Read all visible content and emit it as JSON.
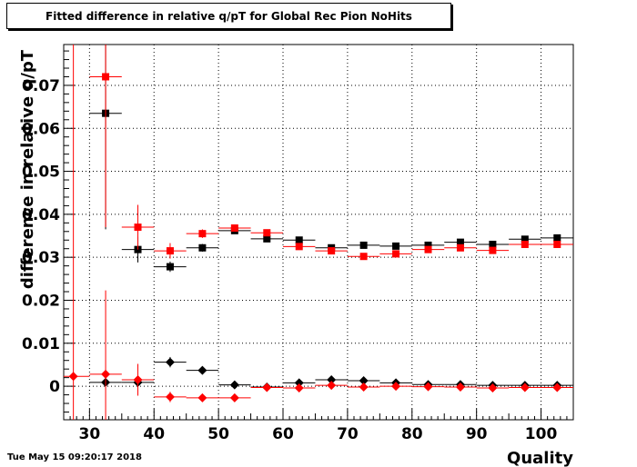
{
  "title": "Fitted difference in relative q/pT for Global Rec Pion NoHits",
  "timestamp": "Tue May 15 09:20:17 2018",
  "chart_data": {
    "type": "scatter",
    "title": "Fitted difference in relative q/pT for Global Rec Pion NoHits",
    "xlabel": "Quality",
    "ylabel": "difference in relative q/pT",
    "xlim": [
      26,
      105
    ],
    "ylim": [
      -0.0078,
      0.0795
    ],
    "grid": true,
    "x_ticks": [
      30,
      40,
      50,
      60,
      70,
      80,
      90,
      100
    ],
    "y_ticks": [
      0,
      0.01,
      0.02,
      0.03,
      0.04,
      0.05,
      0.06,
      0.07
    ],
    "y_tick_labels": [
      "0",
      "0.01",
      "0.02",
      "0.03",
      "0.04",
      "0.05",
      "0.06",
      "0.07"
    ],
    "x_tick_labels": [
      "30",
      "40",
      "50",
      "60",
      "70",
      "80",
      "90",
      "100"
    ],
    "series": [
      {
        "marker": "square",
        "color": "#000000",
        "points": [
          {
            "x": 32.5,
            "y": 0.0635,
            "xerr": 2.5,
            "yerr": 0.027
          },
          {
            "x": 37.5,
            "y": 0.0318,
            "xerr": 2.5,
            "yerr": 0.003
          },
          {
            "x": 42.5,
            "y": 0.0278,
            "xerr": 2.5,
            "yerr": 0.0012
          },
          {
            "x": 47.5,
            "y": 0.0322,
            "xerr": 2.5,
            "yerr": 0.0009
          },
          {
            "x": 52.5,
            "y": 0.0362,
            "xerr": 2.5,
            "yerr": 0.0006
          },
          {
            "x": 57.5,
            "y": 0.0343,
            "xerr": 2.5,
            "yerr": 0.0004
          },
          {
            "x": 62.5,
            "y": 0.034,
            "xerr": 2.5,
            "yerr": 0.0003
          },
          {
            "x": 67.5,
            "y": 0.0322,
            "xerr": 2.5,
            "yerr": 0.0003
          },
          {
            "x": 72.5,
            "y": 0.0328,
            "xerr": 2.5,
            "yerr": 0.0002
          },
          {
            "x": 77.5,
            "y": 0.0326,
            "xerr": 2.5,
            "yerr": 0.0002
          },
          {
            "x": 82.5,
            "y": 0.0328,
            "xerr": 2.5,
            "yerr": 0.0002
          },
          {
            "x": 87.5,
            "y": 0.0335,
            "xerr": 2.5,
            "yerr": 0.0002
          },
          {
            "x": 92.5,
            "y": 0.033,
            "xerr": 2.5,
            "yerr": 0.0002
          },
          {
            "x": 97.5,
            "y": 0.0342,
            "xerr": 2.5,
            "yerr": 0.0002
          },
          {
            "x": 102.5,
            "y": 0.0345,
            "xerr": 2.5,
            "yerr": 0.0002
          }
        ]
      },
      {
        "marker": "square",
        "color": "#ff0000",
        "points": [
          {
            "x": 32.5,
            "y": 0.072,
            "xerr": 2.5,
            "yerr": 0.035
          },
          {
            "x": 37.5,
            "y": 0.037,
            "xerr": 2.5,
            "yerr": 0.0052
          },
          {
            "x": 42.5,
            "y": 0.0315,
            "xerr": 2.5,
            "yerr": 0.0018
          },
          {
            "x": 47.5,
            "y": 0.0355,
            "xerr": 2.5,
            "yerr": 0.001
          },
          {
            "x": 52.5,
            "y": 0.0368,
            "xerr": 2.5,
            "yerr": 0.0006
          },
          {
            "x": 57.5,
            "y": 0.0357,
            "xerr": 2.5,
            "yerr": 0.0004
          },
          {
            "x": 62.5,
            "y": 0.0325,
            "xerr": 2.5,
            "yerr": 0.0003
          },
          {
            "x": 67.5,
            "y": 0.0315,
            "xerr": 2.5,
            "yerr": 0.0003
          },
          {
            "x": 72.5,
            "y": 0.0302,
            "xerr": 2.5,
            "yerr": 0.0002
          },
          {
            "x": 77.5,
            "y": 0.0308,
            "xerr": 2.5,
            "yerr": 0.0002
          },
          {
            "x": 82.5,
            "y": 0.0318,
            "xerr": 2.5,
            "yerr": 0.0002
          },
          {
            "x": 87.5,
            "y": 0.0322,
            "xerr": 2.5,
            "yerr": 0.0002
          },
          {
            "x": 92.5,
            "y": 0.0316,
            "xerr": 2.5,
            "yerr": 0.0002
          },
          {
            "x": 97.5,
            "y": 0.033,
            "xerr": 2.5,
            "yerr": 0.0002
          },
          {
            "x": 102.5,
            "y": 0.033,
            "xerr": 2.5,
            "yerr": 0.0002
          }
        ]
      },
      {
        "marker": "diamond",
        "color": "#000000",
        "points": [
          {
            "x": 32.5,
            "y": 0.0009,
            "xerr": 2.5,
            "yerr": 0.0
          },
          {
            "x": 37.5,
            "y": 0.0009,
            "xerr": 2.5,
            "yerr": 0.0
          },
          {
            "x": 42.5,
            "y": 0.0056,
            "xerr": 2.5,
            "yerr": 0.0012
          },
          {
            "x": 47.5,
            "y": 0.0037,
            "xerr": 2.5,
            "yerr": 0.0008
          },
          {
            "x": 52.5,
            "y": 0.0003,
            "xerr": 2.5,
            "yerr": 0.0005
          },
          {
            "x": 57.5,
            "y": -0.0002,
            "xerr": 2.5,
            "yerr": 0.0003
          },
          {
            "x": 62.5,
            "y": 0.0008,
            "xerr": 2.5,
            "yerr": 0.0003
          },
          {
            "x": 67.5,
            "y": 0.0015,
            "xerr": 2.5,
            "yerr": 0.0002
          },
          {
            "x": 72.5,
            "y": 0.0013,
            "xerr": 2.5,
            "yerr": 0.0002
          },
          {
            "x": 77.5,
            "y": 0.0008,
            "xerr": 2.5,
            "yerr": 0.0002
          },
          {
            "x": 82.5,
            "y": 0.0004,
            "xerr": 2.5,
            "yerr": 0.0002
          },
          {
            "x": 87.5,
            "y": 0.0004,
            "xerr": 2.5,
            "yerr": 0.0002
          },
          {
            "x": 92.5,
            "y": 0.0002,
            "xerr": 2.5,
            "yerr": 0.0002
          },
          {
            "x": 97.5,
            "y": 0.0002,
            "xerr": 2.5,
            "yerr": 0.0002
          },
          {
            "x": 102.5,
            "y": 0.0002,
            "xerr": 2.5,
            "yerr": 0.0002
          }
        ]
      },
      {
        "marker": "diamond",
        "color": "#ff0000",
        "points": [
          {
            "x": 27.5,
            "y": 0.0023,
            "xerr": 2.5,
            "yerr": 0.08
          },
          {
            "x": 32.5,
            "y": 0.0028,
            "xerr": 2.5,
            "yerr": 0.0195
          },
          {
            "x": 37.5,
            "y": 0.0015,
            "xerr": 2.5,
            "yerr": 0.0037
          },
          {
            "x": 42.5,
            "y": -0.0025,
            "xerr": 2.5,
            "yerr": 0.0012
          },
          {
            "x": 47.5,
            "y": -0.0027,
            "xerr": 2.5,
            "yerr": 0.0006
          },
          {
            "x": 52.5,
            "y": -0.0027,
            "xerr": 2.5,
            "yerr": 0.0004
          },
          {
            "x": 57.5,
            "y": -0.0003,
            "xerr": 2.5,
            "yerr": 0.0003
          },
          {
            "x": 62.5,
            "y": -0.0004,
            "xerr": 2.5,
            "yerr": 0.0002
          },
          {
            "x": 67.5,
            "y": 0.0002,
            "xerr": 2.5,
            "yerr": 0.0002
          },
          {
            "x": 72.5,
            "y": -0.0002,
            "xerr": 2.5,
            "yerr": 0.0002
          },
          {
            "x": 77.5,
            "y": 0.0,
            "xerr": 2.5,
            "yerr": 0.0002
          },
          {
            "x": 82.5,
            "y": -0.0001,
            "xerr": 2.5,
            "yerr": 0.0002
          },
          {
            "x": 87.5,
            "y": -0.0002,
            "xerr": 2.5,
            "yerr": 0.0002
          },
          {
            "x": 92.5,
            "y": -0.0004,
            "xerr": 2.5,
            "yerr": 0.0002
          },
          {
            "x": 97.5,
            "y": -0.0003,
            "xerr": 2.5,
            "yerr": 0.0002
          },
          {
            "x": 102.5,
            "y": -0.0003,
            "xerr": 2.5,
            "yerr": 0.0002
          }
        ]
      }
    ]
  }
}
